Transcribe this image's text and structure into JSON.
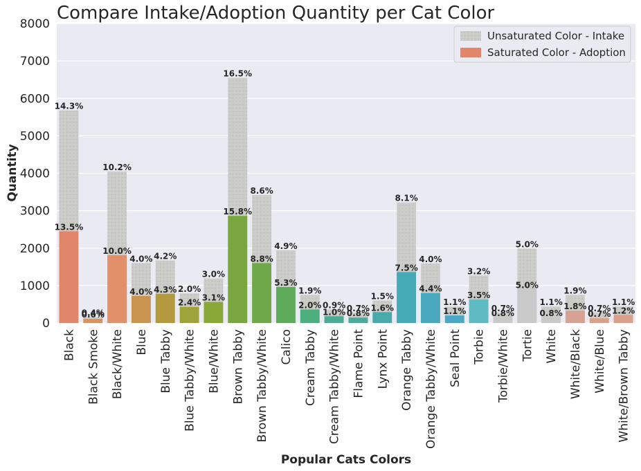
{
  "chart_data": {
    "type": "bar",
    "title": "Compare Intake/Adoption Quantity per Cat Color",
    "xlabel": "Popular Cats Colors",
    "ylabel": "Quantity",
    "ylim": [
      0,
      8000
    ],
    "yticks": [
      0,
      1000,
      2000,
      3000,
      4000,
      5000,
      6000,
      7000,
      8000
    ],
    "grid": true,
    "legend_position": "top-right",
    "categories": [
      "Black",
      "Black Smoke",
      "Black/White",
      "Blue",
      "Blue Tabby",
      "Blue Tabby/White",
      "Blue/White",
      "Brown Tabby",
      "Brown Tabby/White",
      "Calico",
      "Cream Tabby",
      "Cream Tabby/White",
      "Flame Point",
      "Lynx Point",
      "Orange Tabby",
      "Orange Tabby/White",
      "Seal Point",
      "Torbie",
      "Torbie/White",
      "Tortie",
      "White",
      "White/Black",
      "White/Blue",
      "White/Brown Tabby"
    ],
    "series": [
      {
        "name": "Unsaturated Color - Intake",
        "values": [
          5680,
          160,
          4050,
          1600,
          1670,
          790,
          1190,
          6550,
          3420,
          1940,
          750,
          360,
          280,
          600,
          3220,
          1590,
          440,
          1270,
          280,
          1990,
          440,
          750,
          280,
          440
        ],
        "labels": [
          "14.3%",
          "0.4%",
          "10.2%",
          "4.0%",
          "4.2%",
          "2.0%",
          "3.0%",
          "16.5%",
          "8.6%",
          "4.9%",
          "1.9%",
          "0.9%",
          "0.7%",
          "1.5%",
          "8.1%",
          "4.0%",
          "1.1%",
          "3.2%",
          "0.7%",
          "5.0%",
          "1.1%",
          "1.9%",
          "0.7%",
          "1.1%"
        ]
      },
      {
        "name": "Saturated Color - Adoption",
        "values": [
          2450,
          110,
          1810,
          720,
          780,
          430,
          560,
          2860,
          1600,
          960,
          360,
          180,
          145,
          290,
          1360,
          800,
          200,
          630,
          145,
          900,
          145,
          330,
          127,
          217
        ],
        "labels": [
          "13.5%",
          "0.6%",
          "10.0%",
          "4.0%",
          "4.3%",
          "2.4%",
          "3.1%",
          "15.8%",
          "8.8%",
          "5.3%",
          "2.0%",
          "1.0%",
          "0.8%",
          "1.6%",
          "7.5%",
          "4.4%",
          "1.1%",
          "3.5%",
          "0.8%",
          "5.0%",
          "0.8%",
          "1.8%",
          "0.7%",
          "1.2%"
        ],
        "colors": [
          "#e1856b",
          "#dd8f5e",
          "#e1906a",
          "#c8944f",
          "#b49a3e",
          "#9ea43a",
          "#8aa838",
          "#79a63e",
          "#6ea848",
          "#5eab5b",
          "#4eae80",
          "#4aac92",
          "#4aab9c",
          "#48aaaa",
          "#46aab7",
          "#4aa9be",
          "#4aa8c6",
          "#5fbbc2",
          "#c9c9c9",
          "#c9c9c9",
          "#c9c9c9",
          "#d6a294",
          "#d9a08a",
          "#d9a18a"
        ]
      }
    ],
    "intake_color": "#cbcbc7",
    "plot_background": "#eaeaf2",
    "grid_color": "#ffffff"
  }
}
